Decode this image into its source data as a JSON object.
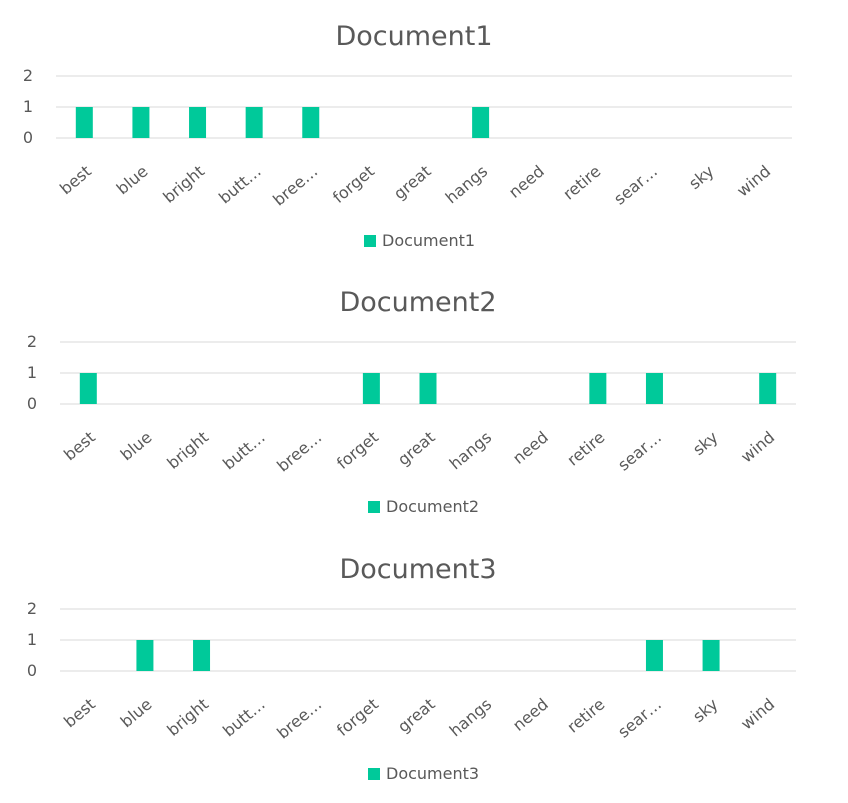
{
  "chart_data": [
    {
      "type": "bar",
      "title": "Document1",
      "categories": [
        "best",
        "blue",
        "bright",
        "butt…",
        "bree…",
        "forget",
        "great",
        "hangs",
        "need",
        "retire",
        "sear…",
        "sky",
        "wind"
      ],
      "series": [
        {
          "name": "Document1",
          "color": "#00c99a",
          "values": [
            1,
            1,
            1,
            1,
            1,
            0,
            0,
            1,
            0,
            0,
            0,
            0,
            0
          ]
        }
      ],
      "ylim": [
        0,
        2
      ],
      "yticks": [
        "0",
        "1",
        "2"
      ],
      "grid": true,
      "legend": "bottom"
    },
    {
      "type": "bar",
      "title": "Document2",
      "categories": [
        "best",
        "blue",
        "bright",
        "butt…",
        "bree…",
        "forget",
        "great",
        "hangs",
        "need",
        "retire",
        "sear…",
        "sky",
        "wind"
      ],
      "series": [
        {
          "name": "Document2",
          "color": "#00c99a",
          "values": [
            1,
            0,
            0,
            0,
            0,
            1,
            1,
            0,
            0,
            1,
            1,
            0,
            1
          ]
        }
      ],
      "ylim": [
        0,
        2
      ],
      "yticks": [
        "0",
        "1",
        "2"
      ],
      "grid": true,
      "legend": "bottom"
    },
    {
      "type": "bar",
      "title": "Document3",
      "categories": [
        "best",
        "blue",
        "bright",
        "butt…",
        "bree…",
        "forget",
        "great",
        "hangs",
        "need",
        "retire",
        "sear…",
        "sky",
        "wind"
      ],
      "series": [
        {
          "name": "Document3",
          "color": "#00c99a",
          "values": [
            0,
            1,
            1,
            0,
            0,
            0,
            0,
            0,
            0,
            0,
            1,
            1,
            0
          ]
        }
      ],
      "ylim": [
        0,
        2
      ],
      "yticks": [
        "0",
        "1",
        "2"
      ],
      "grid": true,
      "legend": "bottom"
    }
  ]
}
